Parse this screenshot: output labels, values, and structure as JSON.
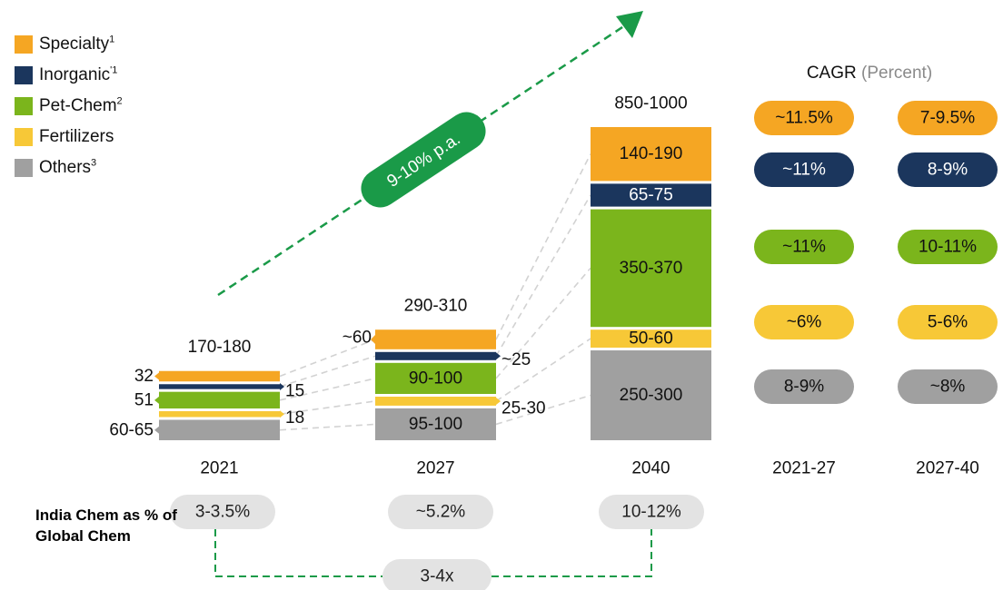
{
  "legend": [
    {
      "label": "Specialty",
      "note": "1",
      "color": "#F5A623"
    },
    {
      "label": "Inorganic",
      "note": "'1",
      "color": "#1B365D"
    },
    {
      "label": "Pet-Chem",
      "note": "2",
      "color": "#7BB51C"
    },
    {
      "label": "Fertilizers",
      "note": "",
      "color": "#F7C837"
    },
    {
      "label": "Others",
      "note": "3",
      "color": "#A0A0A0"
    }
  ],
  "growth_label": "9-10% p.a.",
  "cagr_title": "CAGR",
  "cagr_unit": "(Percent)",
  "india": {
    "label": "India Chem as % of Global Chem",
    "values": [
      "3-3.5%",
      "~5.2%",
      "10-12%"
    ],
    "multiplier": "3-4x"
  },
  "chart_data": {
    "type": "bar",
    "stacked": true,
    "categories": [
      "2021",
      "2027",
      "2040"
    ],
    "totals": [
      "170-180",
      "290-310",
      "850-1000"
    ],
    "series": [
      {
        "name": "Others",
        "values": [
          62.5,
          97.5,
          275
        ],
        "labels": [
          "60-65",
          "95-100",
          "250-300"
        ]
      },
      {
        "name": "Fertilizers",
        "values": [
          18,
          27.5,
          55
        ],
        "labels": [
          "18",
          "25-30",
          "50-60"
        ]
      },
      {
        "name": "Pet-Chem",
        "values": [
          51,
          95,
          360
        ],
        "labels": [
          "51",
          "90-100",
          "350-370"
        ]
      },
      {
        "name": "Inorganic",
        "values": [
          15,
          25,
          70
        ],
        "labels": [
          "15",
          "~25",
          "65-75"
        ]
      },
      {
        "name": "Specialty",
        "values": [
          32,
          60,
          165
        ],
        "labels": [
          "32",
          "~60",
          "140-190"
        ]
      }
    ],
    "cagr": {
      "periods": [
        "2021-27",
        "2027-40"
      ],
      "rows": [
        {
          "series": "Specialty",
          "values": [
            "~11.5%",
            "7-9.5%"
          ]
        },
        {
          "series": "Inorganic",
          "values": [
            "~11%",
            "8-9%"
          ]
        },
        {
          "series": "Pet-Chem",
          "values": [
            "~11%",
            "10-11%"
          ]
        },
        {
          "series": "Fertilizers",
          "values": [
            "~6%",
            "5-6%"
          ]
        },
        {
          "series": "Others",
          "values": [
            "8-9%",
            "~8%"
          ]
        }
      ]
    }
  }
}
